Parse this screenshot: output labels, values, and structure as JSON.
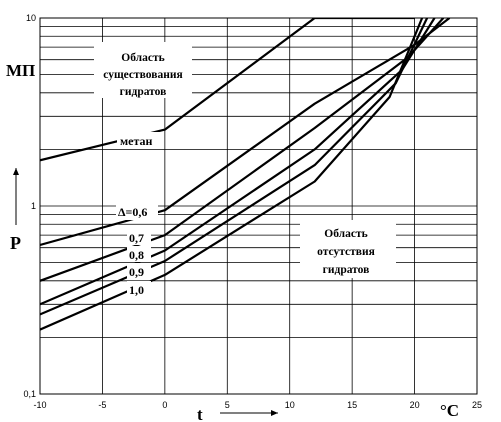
{
  "chart_data": {
    "type": "line",
    "y_scale": "log",
    "xlim": [
      -10,
      25
    ],
    "ylim": [
      0.1,
      10
    ],
    "grid": true,
    "x_ticks": [
      {
        "value": -10,
        "label": "-10"
      },
      {
        "value": -5,
        "label": "-5"
      },
      {
        "value": 0,
        "label": "0"
      },
      {
        "value": 5,
        "label": "5"
      },
      {
        "value": 10,
        "label": "10"
      },
      {
        "value": 15,
        "label": "15"
      },
      {
        "value": 20,
        "label": "20"
      },
      {
        "value": 25,
        "label": "25"
      }
    ],
    "y_ticks": [
      {
        "value": 0.1,
        "label": "0,1"
      },
      {
        "value": 1,
        "label": "1"
      },
      {
        "value": 10,
        "label": "10"
      }
    ],
    "xlabel": "t",
    "xlabel_unit": "°C",
    "ylabel": "P",
    "ylabel_unit": "МП",
    "region_labels": {
      "hydrate_zone": [
        "Область",
        "существования",
        "гидратов"
      ],
      "no_hydrate_zone": [
        "Область",
        "отсутствия",
        "гидратов"
      ]
    },
    "series": [
      {
        "name": "метан",
        "x": [
          -10,
          0,
          12,
          20
        ],
        "y": [
          1.75,
          2.55,
          10,
          10
        ]
      },
      {
        "name": "Δ=0,6",
        "x": [
          -10,
          0,
          12,
          20,
          22.8
        ],
        "y": [
          0.62,
          0.95,
          3.5,
          7.2,
          10
        ]
      },
      {
        "name": "0,7",
        "x": [
          -10,
          0,
          12,
          19.5,
          22.3
        ],
        "y": [
          0.4,
          0.7,
          2.6,
          6.2,
          10
        ]
      },
      {
        "name": "0,8",
        "x": [
          -10,
          0,
          12,
          19,
          21.6
        ],
        "y": [
          0.3,
          0.58,
          2.0,
          5.3,
          10
        ]
      },
      {
        "name": "0,9",
        "x": [
          -10,
          0,
          12,
          18.5,
          21.0
        ],
        "y": [
          0.265,
          0.51,
          1.65,
          4.5,
          10
        ]
      },
      {
        "name": "1,0",
        "x": [
          -10,
          0,
          12,
          18,
          20.6
        ],
        "y": [
          0.22,
          0.43,
          1.35,
          3.8,
          10
        ]
      }
    ]
  }
}
